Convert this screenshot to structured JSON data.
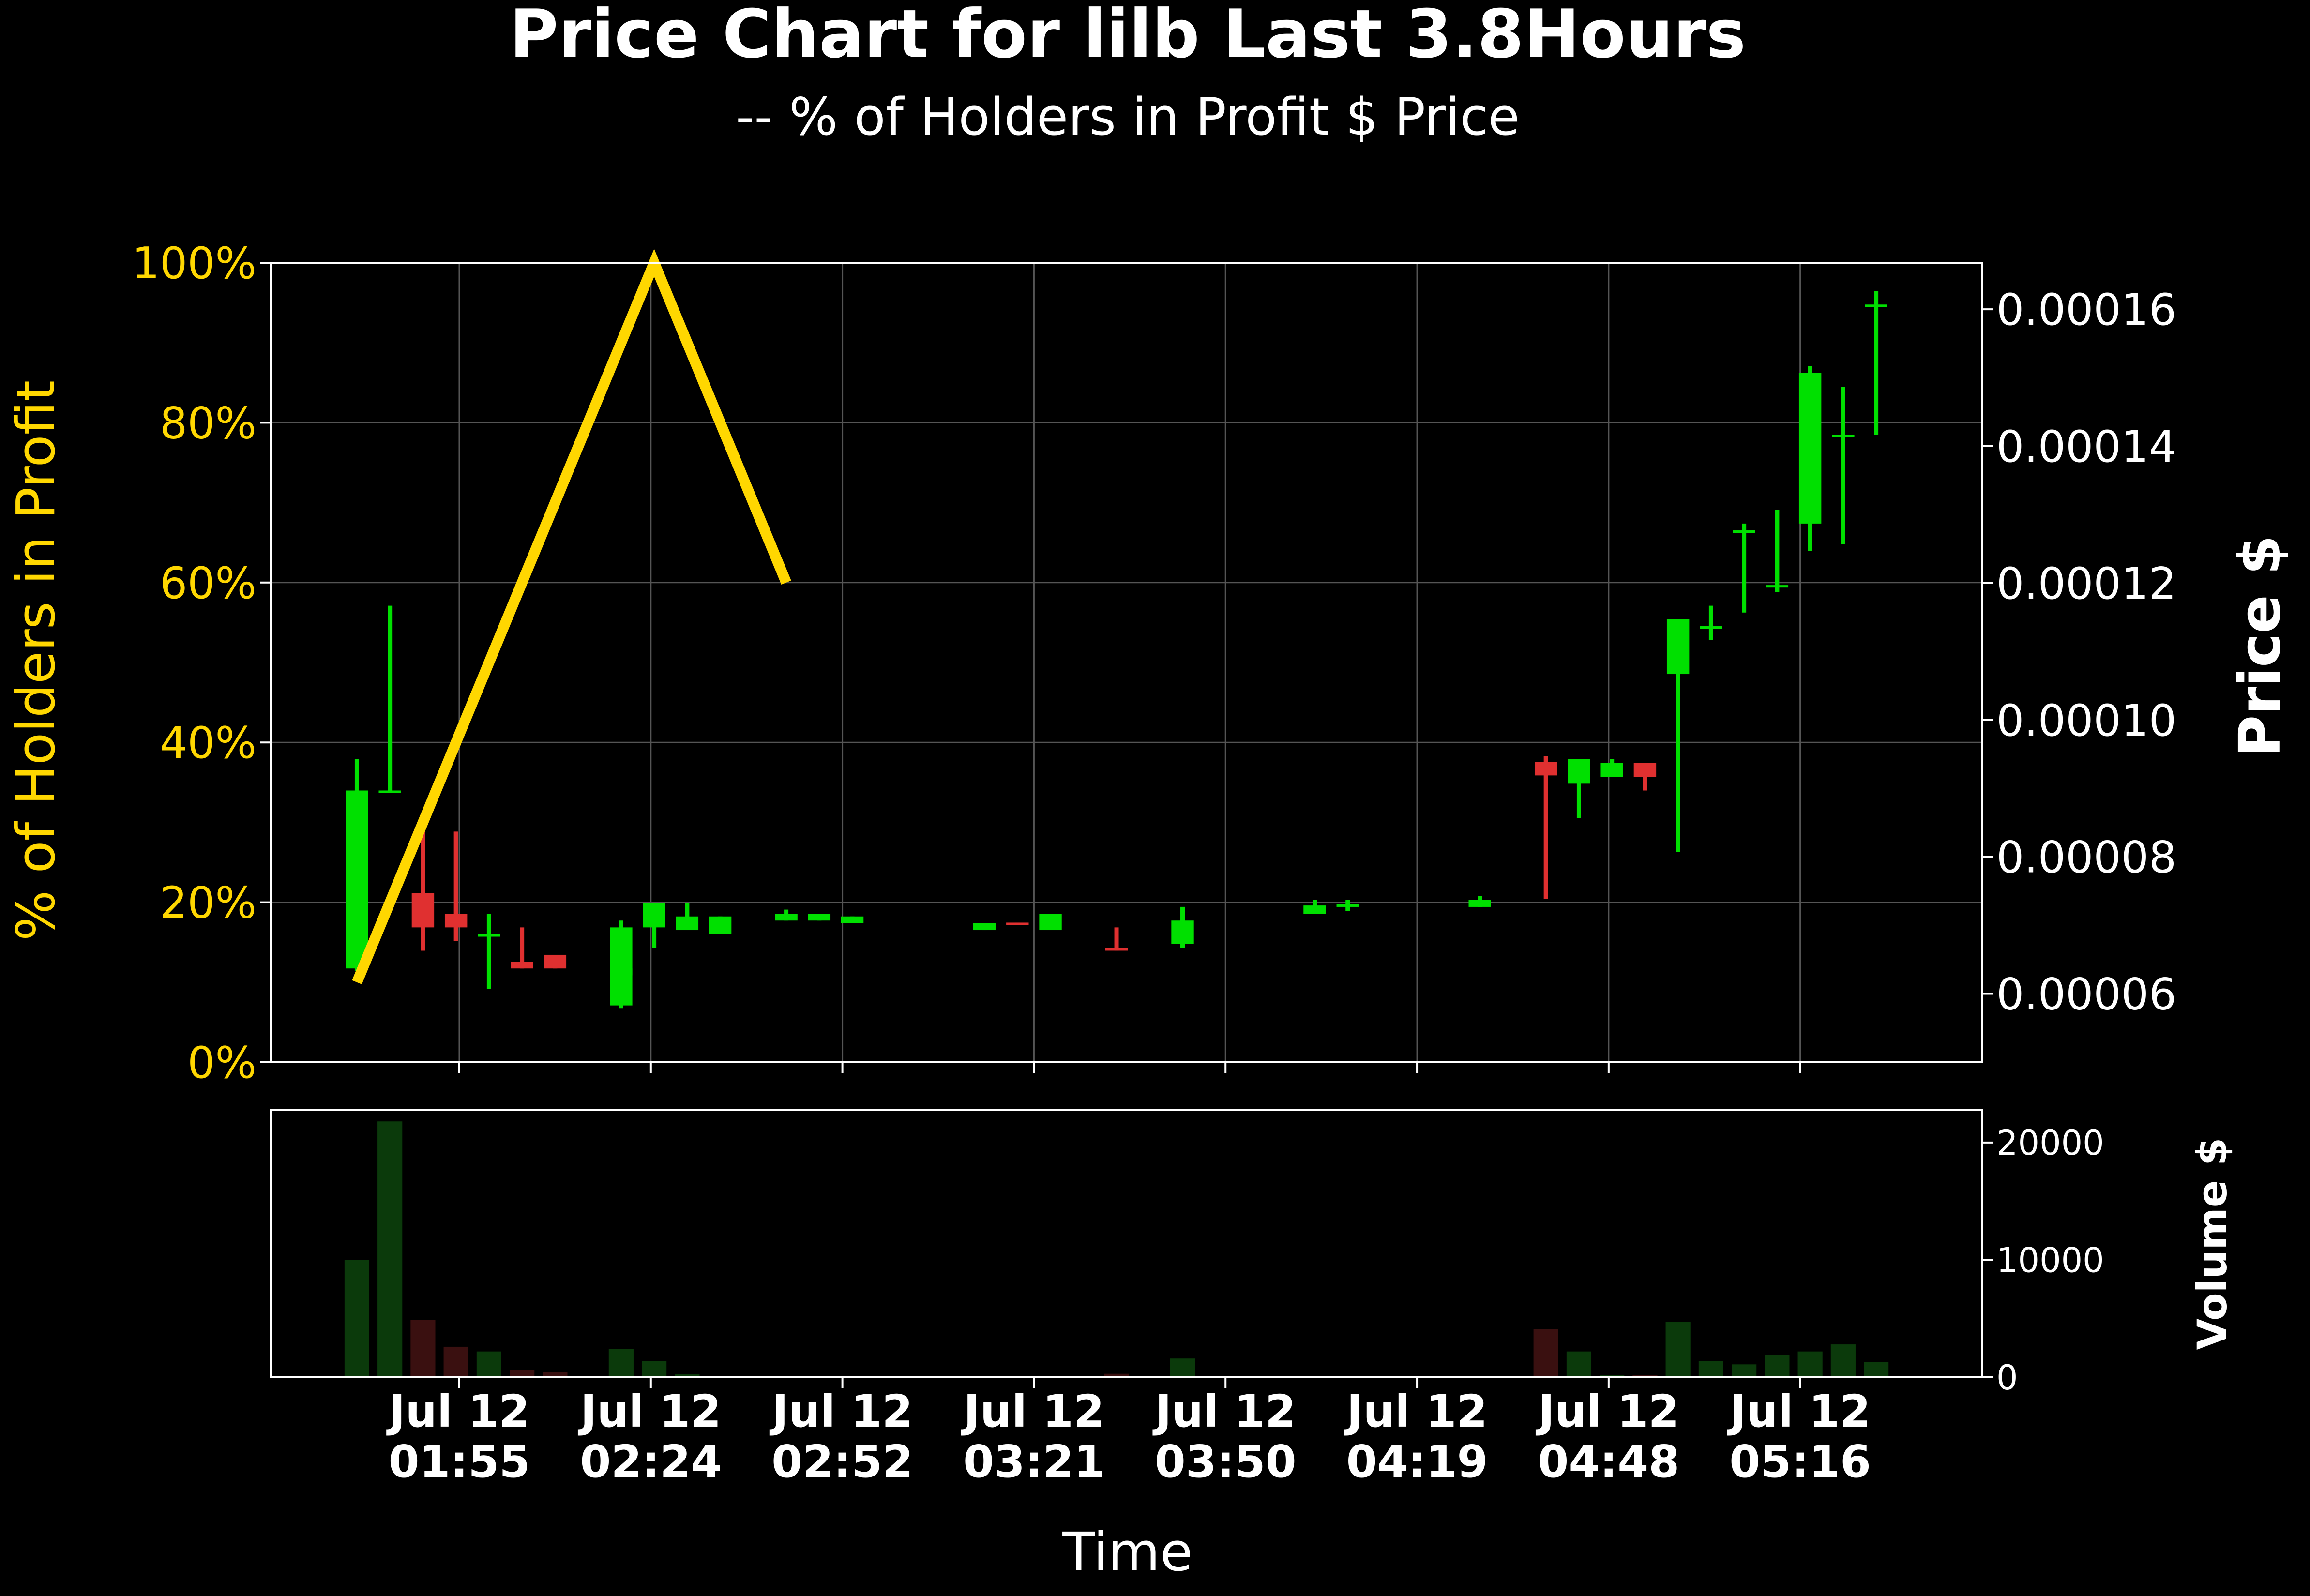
{
  "title": "Price Chart for lilb Last 3.8Hours",
  "subtitle": "-- % of Holders in Profit $ Price",
  "colors": {
    "background": "#000000",
    "profit_line": "#FFD700",
    "up": "#00E000",
    "down": "#E03030",
    "volume_up": "#0B3A0B",
    "volume_down": "#3A1010",
    "grid": "#555555",
    "axes": "#ffffff"
  },
  "chart_data": {
    "type": "candlestick",
    "title": "Price Chart for lilb Last 3.8Hours",
    "subtitle": "-- % of Holders in Profit $ Price",
    "xlabel": "Time",
    "ylabel_left": "% of Holders in Profit",
    "ylabel_right": "Price $",
    "ylabel_volume": "Volume $",
    "x_ticks": [
      {
        "date": "Jul 12",
        "time": "01:55",
        "index": 3.1
      },
      {
        "date": "Jul 12",
        "time": "02:24",
        "index": 8.9
      },
      {
        "date": "Jul 12",
        "time": "02:52",
        "index": 14.7
      },
      {
        "date": "Jul 12",
        "time": "03:21",
        "index": 20.5
      },
      {
        "date": "Jul 12",
        "time": "03:50",
        "index": 26.3
      },
      {
        "date": "Jul 12",
        "time": "04:19",
        "index": 32.1
      },
      {
        "date": "Jul 12",
        "time": "04:48",
        "index": 37.9
      },
      {
        "date": "Jul 12",
        "time": "05:16",
        "index": 43.7
      }
    ],
    "x_range": [
      -2.6,
      49.2
    ],
    "left_axis": {
      "ticks": [
        "0%",
        "20%",
        "40%",
        "60%",
        "80%",
        "100%"
      ],
      "range": [
        0,
        100
      ]
    },
    "right_axis": {
      "ticks": [
        "0.00006",
        "0.00008",
        "0.00010",
        "0.00012",
        "0.00014",
        "0.00016"
      ],
      "range": [
        5e-05,
        0.0001668
      ]
    },
    "volume_axis": {
      "ticks": [
        "0",
        "10000",
        "20000"
      ],
      "range": [
        0,
        22800
      ]
    },
    "profit_pct": [
      {
        "index": 0,
        "value": 10
      },
      {
        "index": 9,
        "value": 100
      },
      {
        "index": 13,
        "value": 60
      }
    ],
    "candles": [
      {
        "i": 0,
        "o": 6.37e-05,
        "h": 9.43e-05,
        "l": 6.33e-05,
        "c": 8.97e-05,
        "v": 10000
      },
      {
        "i": 1,
        "o": 8.97e-05,
        "h": 0.0001167,
        "l": 8.97e-05,
        "c": 8.97e-05,
        "v": 21800
      },
      {
        "i": 2,
        "o": 7.47e-05,
        "h": 8.37e-05,
        "l": 6.63e-05,
        "c": 6.97e-05,
        "v": 4900
      },
      {
        "i": 3,
        "o": 7.17e-05,
        "h": 8.37e-05,
        "l": 6.77e-05,
        "c": 6.97e-05,
        "v": 2600
      },
      {
        "i": 4,
        "o": 6.87e-05,
        "h": 7.17e-05,
        "l": 6.07e-05,
        "c": 6.87e-05,
        "v": 2200
      },
      {
        "i": 5,
        "o": 6.47e-05,
        "h": 6.97e-05,
        "l": 6.37e-05,
        "c": 6.37e-05,
        "v": 650
      },
      {
        "i": 6,
        "o": 6.57e-05,
        "h": 6.57e-05,
        "l": 6.37e-05,
        "c": 6.37e-05,
        "v": 450
      },
      {
        "i": 8,
        "o": 6.27e-05,
        "h": 6.47e-05,
        "l": 6.27e-05,
        "c": 6.37e-05,
        "v": 100
      },
      {
        "i": 8,
        "o": 5.83e-05,
        "h": 7.07e-05,
        "l": 5.79e-05,
        "c": 6.97e-05,
        "v": 2400
      },
      {
        "i": 9,
        "o": 6.97e-05,
        "h": 7.33e-05,
        "l": 6.67e-05,
        "c": 7.33e-05,
        "v": 1400
      },
      {
        "i": 10,
        "o": 6.93e-05,
        "h": 7.33e-05,
        "l": 6.93e-05,
        "c": 7.13e-05,
        "v": 250
      },
      {
        "i": 11,
        "o": 6.87e-05,
        "h": 7.13e-05,
        "l": 6.87e-05,
        "c": 7.13e-05,
        "v": 120
      },
      {
        "i": 13,
        "o": 7.07e-05,
        "h": 7.23e-05,
        "l": 7.07e-05,
        "c": 7.17e-05,
        "v": 50
      },
      {
        "i": 14,
        "o": 7.07e-05,
        "h": 7.17e-05,
        "l": 7.07e-05,
        "c": 7.17e-05,
        "v": 50
      },
      {
        "i": 15,
        "o": 7.03e-05,
        "h": 7.13e-05,
        "l": 7.03e-05,
        "c": 7.13e-05,
        "v": 50
      },
      {
        "i": 19,
        "o": 6.93e-05,
        "h": 7.03e-05,
        "l": 6.93e-05,
        "c": 7.03e-05,
        "v": 60
      },
      {
        "i": 20,
        "o": 7.04e-05,
        "h": 7.04e-05,
        "l": 7.03e-05,
        "c": 7.03e-05,
        "v": 40
      },
      {
        "i": 21,
        "o": 6.93e-05,
        "h": 7.17e-05,
        "l": 6.93e-05,
        "c": 7.17e-05,
        "v": 60
      },
      {
        "i": 23,
        "o": 6.67e-05,
        "h": 6.97e-05,
        "l": 6.63e-05,
        "c": 6.63e-05,
        "v": 300
      },
      {
        "i": 25,
        "o": 6.73e-05,
        "h": 7.27e-05,
        "l": 6.67e-05,
        "c": 7.07e-05,
        "v": 1600
      },
      {
        "i": 29,
        "o": 7.17e-05,
        "h": 7.37e-05,
        "l": 7.17e-05,
        "c": 7.29e-05,
        "v": 80
      },
      {
        "i": 30,
        "o": 7.27e-05,
        "h": 7.37e-05,
        "l": 7.21e-05,
        "c": 7.31e-05,
        "v": 80
      },
      {
        "i": 34,
        "o": 7.27e-05,
        "h": 7.43e-05,
        "l": 7.27e-05,
        "c": 7.37e-05,
        "v": 80
      },
      {
        "i": 36,
        "o": 9.39e-05,
        "h": 9.47e-05,
        "l": 7.39e-05,
        "c": 9.19e-05,
        "v": 4100
      },
      {
        "i": 37,
        "o": 9.07e-05,
        "h": 9.43e-05,
        "l": 8.57e-05,
        "c": 9.43e-05,
        "v": 2200
      },
      {
        "i": 38,
        "o": 9.17e-05,
        "h": 9.43e-05,
        "l": 9.17e-05,
        "c": 9.37e-05,
        "v": 200
      },
      {
        "i": 39,
        "o": 9.37e-05,
        "h": 9.37e-05,
        "l": 8.97e-05,
        "c": 9.17e-05,
        "v": 200
      },
      {
        "i": 40,
        "o": 0.0001067,
        "h": 0.0001147,
        "l": 8.07e-05,
        "c": 0.0001147,
        "v": 4700
      },
      {
        "i": 41,
        "o": 0.0001137,
        "h": 0.0001167,
        "l": 0.0001117,
        "c": 0.0001137,
        "v": 1400
      },
      {
        "i": 42,
        "o": 0.0001277,
        "h": 0.0001287,
        "l": 0.0001157,
        "c": 0.0001277,
        "v": 1100
      },
      {
        "i": 43,
        "o": 0.0001197,
        "h": 0.0001307,
        "l": 0.0001187,
        "c": 0.0001197,
        "v": 1900
      },
      {
        "i": 44,
        "o": 0.0001287,
        "h": 0.0001517,
        "l": 0.0001247,
        "c": 0.0001507,
        "v": 2200
      },
      {
        "i": 45,
        "o": 0.0001417,
        "h": 0.0001487,
        "l": 0.0001257,
        "c": 0.0001417,
        "v": 2800
      },
      {
        "i": 46,
        "o": 0.0001607,
        "h": 0.0001627,
        "l": 0.0001417,
        "c": 0.0001607,
        "v": 1300
      }
    ]
  }
}
